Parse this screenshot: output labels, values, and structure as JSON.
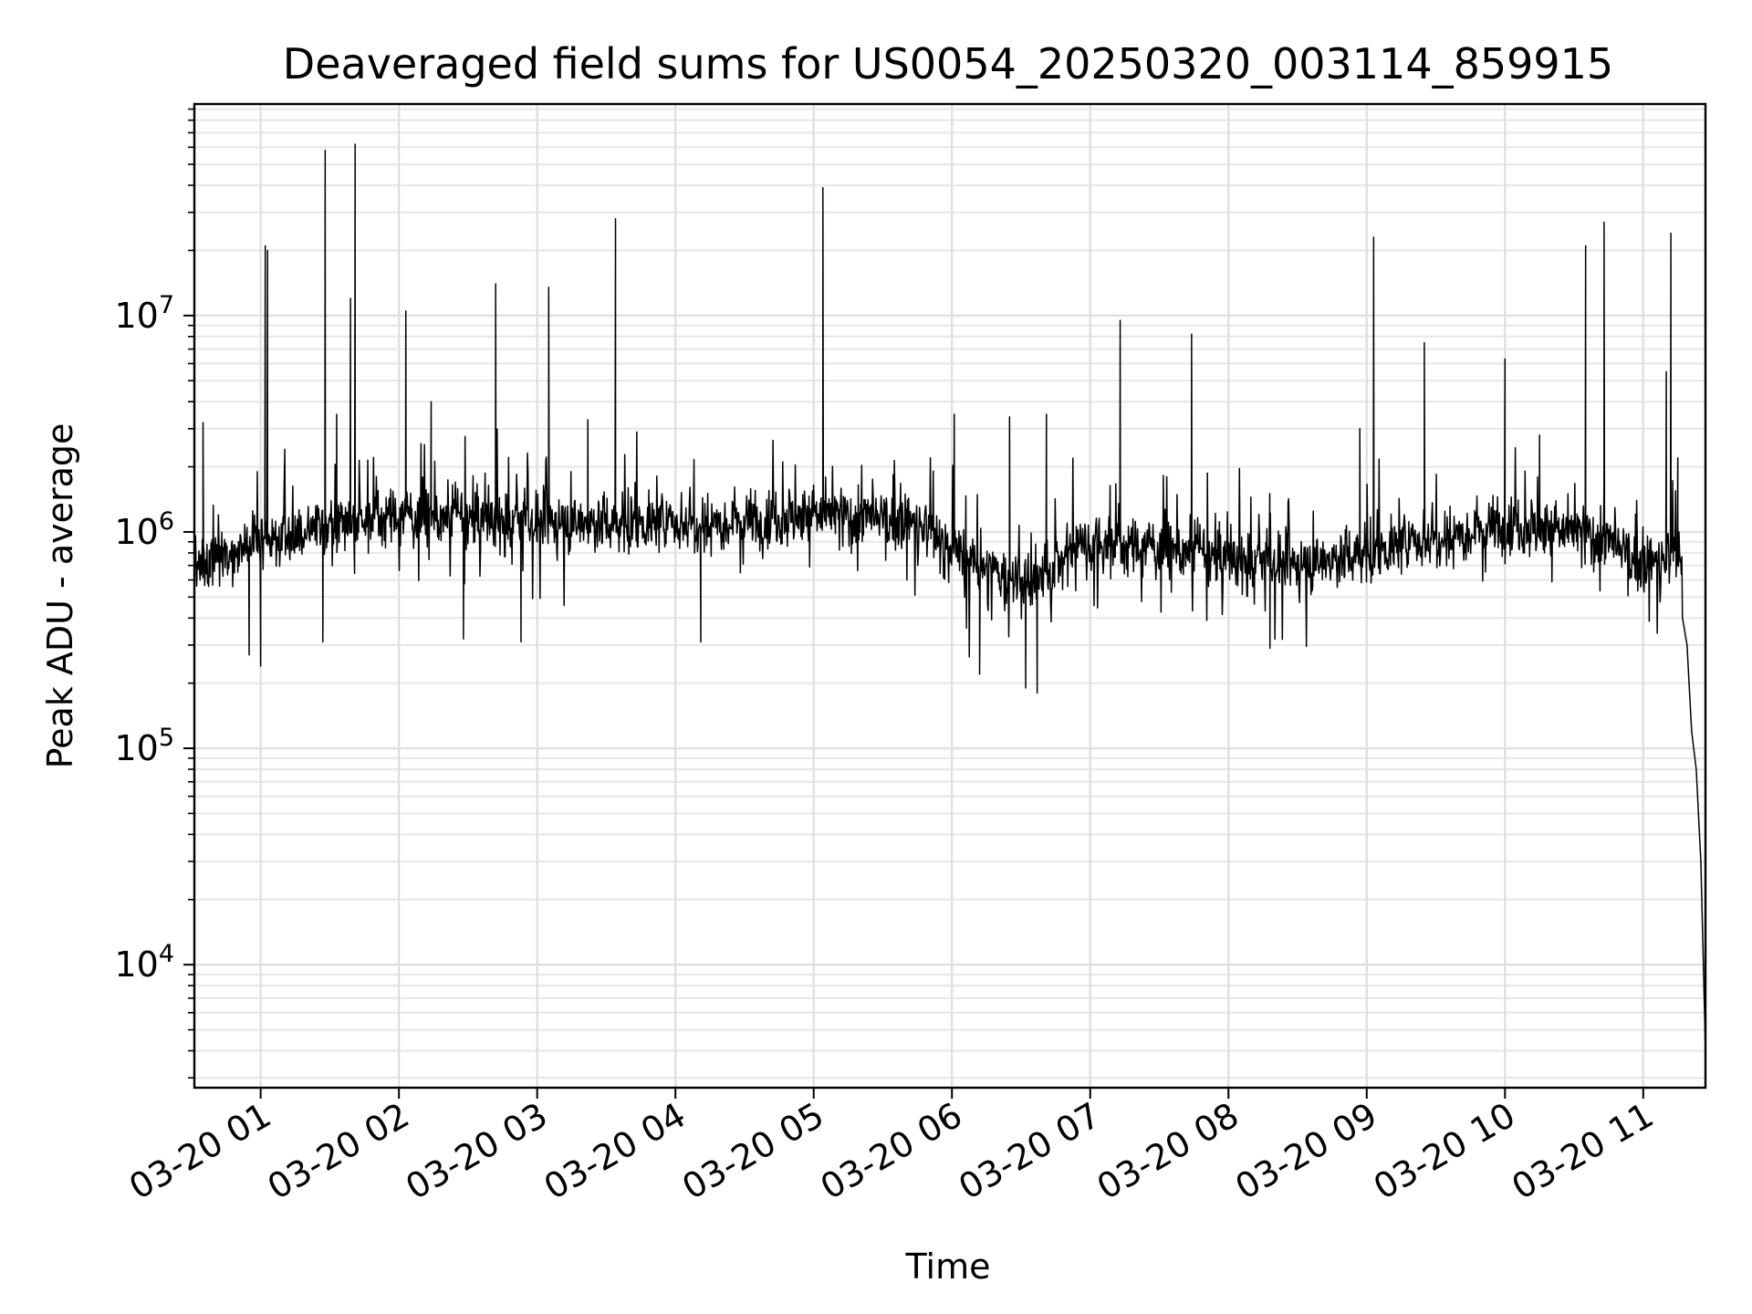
{
  "chart_data": {
    "type": "line",
    "title": "Deaveraged field sums for US0054_20250320_003114_859915",
    "xlabel": "Time",
    "ylabel": "Peak ADU - average",
    "yscale": "log",
    "ylim": [
      2700,
      95000000
    ],
    "xlim": [
      "2025-03-20 00:31:14",
      "2025-03-20 11:27:00"
    ],
    "grid": "on (major and minor)",
    "line_color": "#000000",
    "x_ticks": [
      {
        "value": "2025-03-20 01:00",
        "label": "03-20 01"
      },
      {
        "value": "2025-03-20 02:00",
        "label": "03-20 02"
      },
      {
        "value": "2025-03-20 03:00",
        "label": "03-20 03"
      },
      {
        "value": "2025-03-20 04:00",
        "label": "03-20 04"
      },
      {
        "value": "2025-03-20 05:00",
        "label": "03-20 05"
      },
      {
        "value": "2025-03-20 06:00",
        "label": "03-20 06"
      },
      {
        "value": "2025-03-20 07:00",
        "label": "03-20 07"
      },
      {
        "value": "2025-03-20 08:00",
        "label": "03-20 08"
      },
      {
        "value": "2025-03-20 09:00",
        "label": "03-20 09"
      },
      {
        "value": "2025-03-20 10:00",
        "label": "03-20 10"
      },
      {
        "value": "2025-03-20 11:00",
        "label": "03-20 11"
      }
    ],
    "y_ticks": [
      {
        "value": 10000,
        "base": "10",
        "exp": "4"
      },
      {
        "value": 100000,
        "base": "10",
        "exp": "5"
      },
      {
        "value": 1000000,
        "base": "10",
        "exp": "6"
      },
      {
        "value": 10000000,
        "base": "10",
        "exp": "7"
      }
    ],
    "series": [
      {
        "baseline": [
          [
            "2025-03-20 00:31",
            700000
          ],
          [
            "2025-03-20 00:45",
            800000
          ],
          [
            "2025-03-20 01:00",
            900000
          ],
          [
            "2025-03-20 01:30",
            1100000
          ],
          [
            "2025-03-20 02:00",
            1200000
          ],
          [
            "2025-03-20 03:00",
            1100000
          ],
          [
            "2025-03-20 04:00",
            1100000
          ],
          [
            "2025-03-20 05:00",
            1200000
          ],
          [
            "2025-03-20 05:45",
            1100000
          ],
          [
            "2025-03-20 06:10",
            700000
          ],
          [
            "2025-03-20 06:35",
            550000
          ],
          [
            "2025-03-20 06:55",
            900000
          ],
          [
            "2025-03-20 07:30",
            850000
          ],
          [
            "2025-03-20 08:00",
            750000
          ],
          [
            "2025-03-20 08:30",
            700000
          ],
          [
            "2025-03-20 09:00",
            800000
          ],
          [
            "2025-03-20 09:30",
            950000
          ],
          [
            "2025-03-20 10:00",
            1100000
          ],
          [
            "2025-03-20 10:40",
            950000
          ],
          [
            "2025-03-20 11:00",
            700000
          ],
          [
            "2025-03-20 11:16",
            800000
          ],
          [
            "2025-03-20 11:19",
            300000
          ],
          [
            "2025-03-20 11:21",
            120000
          ],
          [
            "2025-03-20 11:23",
            80000
          ],
          [
            "2025-03-20 11:25",
            30000
          ],
          [
            "2025-03-20 11:27",
            4000
          ]
        ],
        "spikes": [
          [
            "2025-03-20 00:35",
            3200000
          ],
          [
            "2025-03-20 01:02",
            21000000
          ],
          [
            "2025-03-20 01:03",
            20000000
          ],
          [
            "2025-03-20 01:28",
            58000000
          ],
          [
            "2025-03-20 01:33",
            3500000
          ],
          [
            "2025-03-20 01:39",
            12000000
          ],
          [
            "2025-03-20 01:41",
            62000000
          ],
          [
            "2025-03-20 02:03",
            10500000
          ],
          [
            "2025-03-20 02:14",
            4000000
          ],
          [
            "2025-03-20 02:42",
            14000000
          ],
          [
            "2025-03-20 03:05",
            13500000
          ],
          [
            "2025-03-20 03:22",
            3300000
          ],
          [
            "2025-03-20 03:34",
            28000000
          ],
          [
            "2025-03-20 05:04",
            39000000
          ],
          [
            "2025-03-20 06:01",
            3500000
          ],
          [
            "2025-03-20 06:25",
            3400000
          ],
          [
            "2025-03-20 06:41",
            3500000
          ],
          [
            "2025-03-20 07:13",
            9500000
          ],
          [
            "2025-03-20 07:44",
            8200000
          ],
          [
            "2025-03-20 08:57",
            3000000
          ],
          [
            "2025-03-20 09:03",
            23000000
          ],
          [
            "2025-03-20 09:25",
            7500000
          ],
          [
            "2025-03-20 10:00",
            6300000
          ],
          [
            "2025-03-20 10:15",
            2800000
          ],
          [
            "2025-03-20 10:35",
            21000000
          ],
          [
            "2025-03-20 10:43",
            27000000
          ],
          [
            "2025-03-20 11:10",
            5500000
          ],
          [
            "2025-03-20 11:12",
            24000000
          ],
          [
            "2025-03-20 11:15",
            2200000
          ]
        ],
        "dips": [
          [
            "2025-03-20 00:55",
            270000
          ],
          [
            "2025-03-20 01:00",
            240000
          ],
          [
            "2025-03-20 01:27",
            310000
          ],
          [
            "2025-03-20 02:28",
            320000
          ],
          [
            "2025-03-20 02:53",
            310000
          ],
          [
            "2025-03-20 04:11",
            310000
          ],
          [
            "2025-03-20 06:12",
            220000
          ],
          [
            "2025-03-20 06:32",
            190000
          ],
          [
            "2025-03-20 06:37",
            180000
          ],
          [
            "2025-03-20 08:18",
            290000
          ]
        ]
      }
    ]
  }
}
